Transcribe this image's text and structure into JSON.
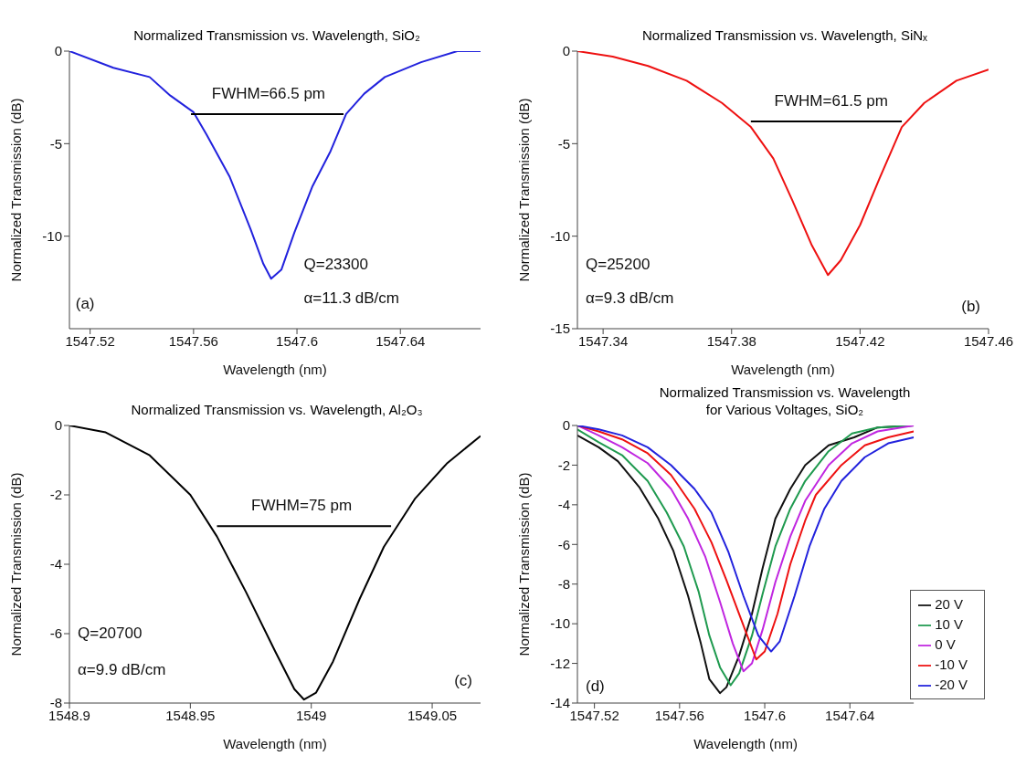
{
  "chart_data": [
    {
      "type": "line",
      "title": "Normalized Transmission vs. Wavelength, SiO₂",
      "xlabel": "Wavelength (nm)",
      "ylabel": "Normalized Transmission (dB)",
      "xlim": [
        1547.512,
        1547.671
      ],
      "xticks": [
        1547.52,
        1547.56,
        1547.6,
        1547.64
      ],
      "ylim": [
        -15,
        0
      ],
      "yticks": [
        -10,
        -5,
        0
      ],
      "series": [
        {
          "color": "#2222dd",
          "x": [
            1547.512,
            1547.529,
            1547.543,
            1547.551,
            1547.56,
            1547.565,
            1547.574,
            1547.582,
            1547.587,
            1547.59,
            1547.594,
            1547.599,
            1547.606,
            1547.613,
            1547.619,
            1547.626,
            1547.634,
            1547.648,
            1547.662,
            1547.671
          ],
          "values": [
            0,
            -0.9,
            -1.4,
            -2.4,
            -3.3,
            -4.5,
            -6.8,
            -9.6,
            -11.5,
            -12.3,
            -11.8,
            -9.8,
            -7.3,
            -5.4,
            -3.4,
            -2.3,
            -1.4,
            -0.6,
            0,
            0
          ]
        },
        {
          "color": "#000000",
          "x": [
            1547.559,
            1547.618
          ],
          "values": [
            -3.4,
            -3.4
          ]
        }
      ],
      "annotations": [
        {
          "text": "FWHM=66.5 pm",
          "x": 1547.589,
          "y": -3.4
        },
        "Q=23300",
        "α=11.3 dB/cm",
        "(a)"
      ]
    },
    {
      "type": "line",
      "title": "Normalized Transmission vs. Wavelength, SiNₓ",
      "xlabel": "Wavelength (nm)",
      "ylabel": "Normalized Transmission (dB)",
      "xlim": [
        1547.332,
        1547.46
      ],
      "xticks": [
        1547.34,
        1547.38,
        1547.42,
        1547.46
      ],
      "ylim": [
        -15,
        0
      ],
      "yticks": [
        -15,
        -10,
        -5,
        0
      ],
      "series": [
        {
          "color": "#ee1111",
          "x": [
            1547.332,
            1547.343,
            1547.354,
            1547.366,
            1547.377,
            1547.386,
            1547.393,
            1547.399,
            1547.405,
            1547.41,
            1547.414,
            1547.42,
            1547.426,
            1547.433,
            1547.44,
            1547.45,
            1547.46
          ],
          "values": [
            0,
            -0.3,
            -0.8,
            -1.6,
            -2.8,
            -4.1,
            -5.8,
            -8.1,
            -10.5,
            -12.1,
            -11.3,
            -9.4,
            -6.9,
            -4.1,
            -2.8,
            -1.6,
            -1.0
          ]
        },
        {
          "color": "#000000",
          "x": [
            1547.386,
            1547.433
          ],
          "values": [
            -3.8,
            -3.8
          ]
        }
      ],
      "annotations": [
        {
          "text": "FWHM=61.5 pm",
          "x": 1547.411,
          "y": -3.8
        },
        "Q=25200",
        "α=9.3 dB/cm",
        "(b)"
      ]
    },
    {
      "type": "line",
      "title": "Normalized Transmission vs. Wavelength, Al₂O₃",
      "xlabel": "Wavelength (nm)",
      "ylabel": "Normalized Transmission (dB)",
      "xlim": [
        1548.9,
        1549.07
      ],
      "xticks": [
        1548.9,
        1548.95,
        1549,
        1549.05
      ],
      "ylim": [
        -8,
        0
      ],
      "yticks": [
        -8,
        -6,
        -4,
        -2,
        0
      ],
      "series": [
        {
          "color": "#000000",
          "x": [
            1548.9,
            1548.915,
            1548.933,
            1548.95,
            1548.961,
            1548.973,
            1548.985,
            1548.993,
            1548.997,
            1549.002,
            1549.009,
            1549.02,
            1549.03,
            1549.043,
            1549.056,
            1549.07
          ],
          "values": [
            0,
            -0.2,
            -0.85,
            -2.0,
            -3.2,
            -4.8,
            -6.5,
            -7.6,
            -7.9,
            -7.7,
            -6.8,
            -5.0,
            -3.5,
            -2.1,
            -1.1,
            -0.3
          ]
        },
        {
          "color": "#000000",
          "x": [
            1548.961,
            1549.033
          ],
          "values": [
            -2.9,
            -2.9
          ]
        }
      ],
      "annotations": [
        {
          "text": "FWHM=75 pm",
          "x": 1548.996,
          "y": -2.9
        },
        "Q=20700",
        "α=9.9 dB/cm",
        "(c)"
      ]
    },
    {
      "type": "line",
      "title": "Normalized Transmission vs. Wavelength",
      "subtitle": "for Various Voltages, SiO₂",
      "xlabel": "Wavelength (nm)",
      "ylabel": "Normalized Transmission (dB)",
      "xlim": [
        1547.512,
        1547.67
      ],
      "xticks": [
        1547.52,
        1547.56,
        1547.6,
        1547.64
      ],
      "ylim": [
        -14,
        0
      ],
      "yticks": [
        -14,
        -12,
        -10,
        -8,
        -6,
        -4,
        -2,
        0
      ],
      "legend": "bottom right",
      "series": [
        {
          "name": "20 V",
          "color": "#111111",
          "x": [
            1547.512,
            1547.522,
            1547.531,
            1547.541,
            1547.55,
            1547.557,
            1547.564,
            1547.57,
            1547.574,
            1547.579,
            1547.582,
            1547.588,
            1547.594,
            1547.599,
            1547.605,
            1547.612,
            1547.619,
            1547.63,
            1547.642,
            1547.653,
            1547.67
          ],
          "values": [
            -0.5,
            -1.1,
            -1.8,
            -3.1,
            -4.7,
            -6.3,
            -8.6,
            -11.0,
            -12.8,
            -13.5,
            -13.2,
            -11.6,
            -9.5,
            -7.2,
            -4.7,
            -3.2,
            -2.0,
            -1.0,
            -0.6,
            -0.1,
            0
          ]
        },
        {
          "name": "10 V",
          "color": "#1f9a4f",
          "x": [
            1547.512,
            1547.522,
            1547.533,
            1547.545,
            1547.554,
            1547.562,
            1547.569,
            1547.574,
            1547.579,
            1547.584,
            1547.588,
            1547.594,
            1547.599,
            1547.605,
            1547.612,
            1547.619,
            1547.63,
            1547.641,
            1547.653,
            1547.67
          ],
          "values": [
            -0.2,
            -0.85,
            -1.5,
            -2.8,
            -4.4,
            -6.1,
            -8.4,
            -10.6,
            -12.2,
            -13.1,
            -12.5,
            -10.6,
            -8.5,
            -6.1,
            -4.2,
            -2.8,
            -1.3,
            -0.4,
            -0.1,
            0
          ]
        },
        {
          "name": "0 V",
          "color": "#c026e0",
          "x": [
            1547.512,
            1547.522,
            1547.533,
            1547.545,
            1547.556,
            1547.564,
            1547.572,
            1547.579,
            1547.585,
            1547.59,
            1547.594,
            1547.599,
            1547.605,
            1547.612,
            1547.619,
            1547.63,
            1547.641,
            1547.653,
            1547.67
          ],
          "values": [
            0,
            -0.5,
            -1.1,
            -1.9,
            -3.2,
            -4.7,
            -6.6,
            -8.9,
            -11.0,
            -12.4,
            -12.0,
            -10.3,
            -7.9,
            -5.6,
            -3.8,
            -2.0,
            -0.9,
            -0.3,
            0
          ]
        },
        {
          "name": "-10 V",
          "color": "#ee1111",
          "x": [
            1547.512,
            1547.522,
            1547.533,
            1547.545,
            1547.556,
            1547.567,
            1547.575,
            1547.582,
            1547.589,
            1547.596,
            1547.6,
            1547.606,
            1547.612,
            1547.619,
            1547.624,
            1547.636,
            1547.647,
            1547.658,
            1547.67
          ],
          "values": [
            0,
            -0.3,
            -0.7,
            -1.4,
            -2.5,
            -4.2,
            -5.9,
            -7.8,
            -9.8,
            -11.8,
            -11.4,
            -9.5,
            -7.0,
            -4.8,
            -3.5,
            -2.0,
            -1.0,
            -0.6,
            -0.3
          ]
        },
        {
          "name": "-20 V",
          "color": "#2222dd",
          "x": [
            1547.512,
            1547.522,
            1547.533,
            1547.545,
            1547.556,
            1547.567,
            1547.575,
            1547.583,
            1547.59,
            1547.597,
            1547.603,
            1547.607,
            1547.614,
            1547.621,
            1547.628,
            1547.636,
            1547.647,
            1547.658,
            1547.67
          ],
          "values": [
            0,
            -0.2,
            -0.5,
            -1.1,
            -2.0,
            -3.2,
            -4.4,
            -6.4,
            -8.6,
            -10.6,
            -11.4,
            -10.9,
            -8.6,
            -6.1,
            -4.2,
            -2.8,
            -1.6,
            -0.9,
            -0.6
          ]
        }
      ],
      "annotations": [
        "(d)"
      ]
    }
  ]
}
